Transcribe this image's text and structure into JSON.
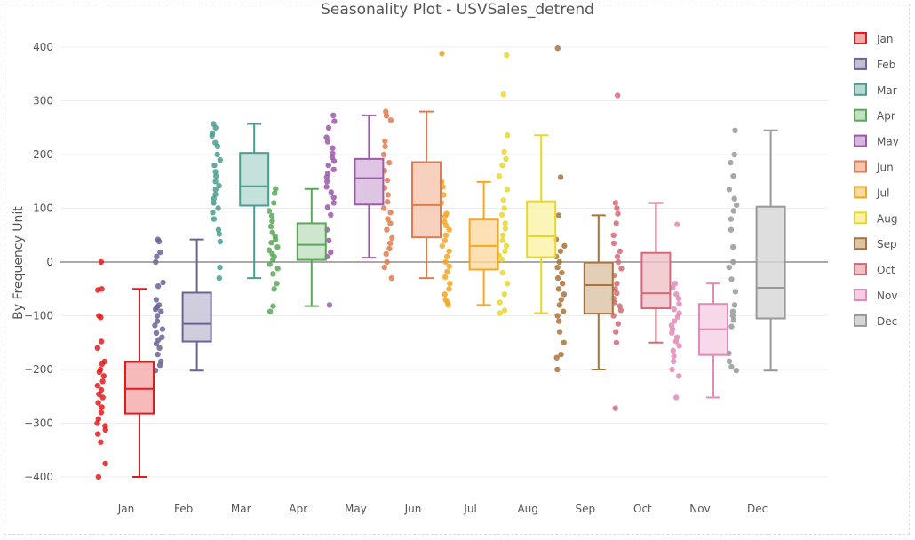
{
  "chart_data": {
    "type": "box",
    "title": "Seasonality Plot - USVSales_detrend",
    "xlabel": "",
    "ylabel": "By Frequency Unit",
    "ylim": [
      -420,
      420
    ],
    "yticks": [
      400,
      300,
      200,
      100,
      0,
      -100,
      -200,
      -300,
      -400
    ],
    "ytick_labels": [
      "400",
      "300",
      "200",
      "100",
      "0",
      "−100",
      "−200",
      "−300",
      "−400"
    ],
    "grid": true,
    "legend_position": "right",
    "categories": [
      "Jan",
      "Feb",
      "Mar",
      "Apr",
      "May",
      "Jun",
      "Jul",
      "Aug",
      "Sep",
      "Oct",
      "Nov",
      "Dec"
    ],
    "series": [
      {
        "name": "Jan",
        "color": "#e41a1c",
        "fill": "#f4a9aa",
        "min": -400,
        "q1": -282,
        "median": -236,
        "q3": -186,
        "max": -50,
        "points": [
          0,
          -50,
          -52,
          -100,
          -103,
          -148,
          -160,
          -185,
          -190,
          -200,
          -205,
          -212,
          -222,
          -230,
          -238,
          -246,
          -252,
          -262,
          -270,
          -280,
          -292,
          -300,
          -305,
          -312,
          -320,
          -335,
          -375,
          -400
        ]
      },
      {
        "name": "Feb",
        "color": "#6b6394",
        "fill": "#c4c0d6",
        "min": -202,
        "q1": -148,
        "median": -115,
        "q3": -57,
        "max": 42,
        "points": [
          42,
          38,
          18,
          10,
          0,
          -38,
          -45,
          -70,
          -80,
          -84,
          -88,
          -92,
          -100,
          -110,
          -118,
          -125,
          -132,
          -140,
          -145,
          -152,
          -160,
          -172,
          -185,
          -192,
          -202
        ]
      },
      {
        "name": "Mar",
        "color": "#4a9d8f",
        "fill": "#b5d9d2",
        "min": -30,
        "q1": 105,
        "median": 141,
        "q3": 203,
        "max": 257,
        "points": [
          257,
          250,
          240,
          235,
          222,
          215,
          200,
          190,
          180,
          168,
          160,
          150,
          142,
          135,
          126,
          118,
          110,
          100,
          92,
          80,
          60,
          52,
          38,
          -10,
          -30
        ]
      },
      {
        "name": "Apr",
        "color": "#5aa75a",
        "fill": "#c1e0c1",
        "min": -82,
        "q1": 4,
        "median": 32,
        "q3": 72,
        "max": 136,
        "points": [
          136,
          128,
          110,
          95,
          86,
          76,
          66,
          55,
          48,
          42,
          36,
          28,
          22,
          15,
          10,
          4,
          -4,
          -12,
          -22,
          -40,
          -50,
          -82,
          -92
        ]
      },
      {
        "name": "May",
        "color": "#9b59a8",
        "fill": "#d5b7dc",
        "min": 8,
        "q1": 107,
        "median": 156,
        "q3": 192,
        "max": 273,
        "points": [
          273,
          262,
          250,
          232,
          224,
          212,
          202,
          195,
          188,
          180,
          172,
          165,
          158,
          150,
          140,
          130,
          120,
          110,
          102,
          88,
          60,
          40,
          18,
          10,
          -80
        ]
      },
      {
        "name": "Jun",
        "color": "#e07b4f",
        "fill": "#f5c5ae",
        "min": -30,
        "q1": 46,
        "median": 106,
        "q3": 186,
        "max": 280,
        "points": [
          280,
          272,
          264,
          225,
          215,
          200,
          185,
          170,
          152,
          138,
          125,
          112,
          100,
          92,
          80,
          72,
          60,
          45,
          35,
          25,
          15,
          0,
          -10,
          -30
        ]
      },
      {
        "name": "Jul",
        "color": "#f5a623",
        "fill": "#fcd9a3",
        "min": -80,
        "q1": -14,
        "median": 30,
        "q3": 79,
        "max": 149,
        "points": [
          388,
          149,
          140,
          125,
          110,
          90,
          85,
          75,
          68,
          60,
          50,
          40,
          30,
          20,
          10,
          0,
          -8,
          -18,
          -28,
          -40,
          -50,
          -60,
          -70,
          -75,
          -80
        ]
      },
      {
        "name": "Aug",
        "color": "#e8d72b",
        "fill": "#faf3a6",
        "min": -95,
        "q1": 9,
        "median": 48,
        "q3": 113,
        "max": 236,
        "points": [
          385,
          312,
          236,
          205,
          192,
          180,
          160,
          135,
          115,
          100,
          88,
          72,
          62,
          50,
          40,
          30,
          20,
          12,
          5,
          -20,
          -40,
          -60,
          -75,
          -90,
          -95
        ]
      },
      {
        "name": "Sep",
        "color": "#a9733a",
        "fill": "#dcc3a5",
        "min": -200,
        "q1": -96,
        "median": -43,
        "q3": -1,
        "max": 87,
        "points": [
          398,
          158,
          87,
          42,
          30,
          20,
          10,
          0,
          -10,
          -20,
          -30,
          -40,
          -50,
          -60,
          -70,
          -80,
          -92,
          -100,
          -110,
          -130,
          -150,
          -172,
          -178,
          -200
        ]
      },
      {
        "name": "Oct",
        "color": "#d46a78",
        "fill": "#efc0c6",
        "min": -150,
        "q1": -86,
        "median": -58,
        "q3": 17,
        "max": 110,
        "points": [
          310,
          110,
          100,
          90,
          72,
          50,
          35,
          20,
          10,
          0,
          -12,
          -25,
          -40,
          -50,
          -58,
          -68,
          -75,
          -82,
          -90,
          -100,
          -115,
          -130,
          -150,
          -272
        ]
      },
      {
        "name": "Nov",
        "color": "#e28ab9",
        "fill": "#f5cfe3",
        "min": -252,
        "q1": -173,
        "median": -125,
        "q3": -78,
        "max": -40,
        "points": [
          70,
          -40,
          -48,
          -60,
          -68,
          -78,
          -88,
          -95,
          -102,
          -110,
          -118,
          -125,
          -132,
          -140,
          -148,
          -156,
          -165,
          -175,
          -185,
          -200,
          -212,
          -252
        ]
      },
      {
        "name": "Dec",
        "color": "#999999",
        "fill": "#d6d6d6",
        "min": -202,
        "q1": -105,
        "median": -48,
        "q3": 103,
        "max": 245,
        "points": [
          245,
          200,
          185,
          160,
          135,
          118,
          106,
          95,
          80,
          60,
          28,
          0,
          -10,
          -32,
          -55,
          -80,
          -92,
          -100,
          -108,
          -120,
          -170,
          -185,
          -195,
          -202
        ]
      }
    ]
  }
}
